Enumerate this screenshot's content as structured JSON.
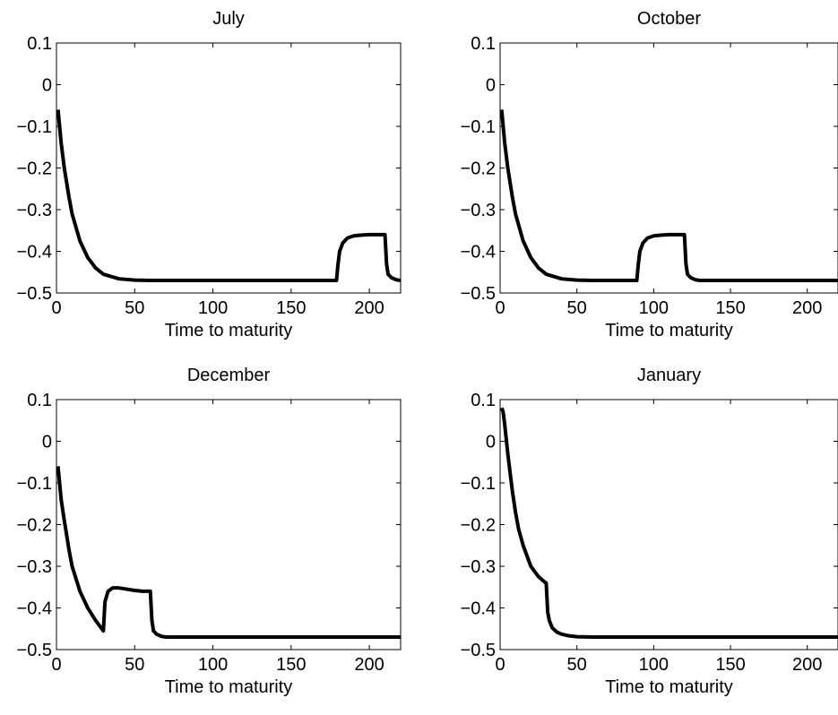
{
  "chart_data": [
    {
      "type": "line",
      "title": "July",
      "xlabel": "Time to maturity",
      "ylabel": "",
      "xlim": [
        0,
        220
      ],
      "ylim": [
        -0.5,
        0.1
      ],
      "xticks": [
        0,
        50,
        100,
        150,
        200
      ],
      "xtick_labels": [
        "0",
        "50",
        "100",
        "150",
        "200"
      ],
      "yticks": [
        0.1,
        0,
        -0.1,
        -0.2,
        -0.3,
        -0.4,
        -0.5
      ],
      "ytick_labels": [
        "0.1",
        "0",
        "−0.1",
        "−0.2",
        "−0.3",
        "−0.4",
        "−0.5"
      ],
      "grid": false,
      "series": [
        {
          "color": "#000000",
          "x": [
            1,
            3,
            5,
            8,
            10,
            15,
            20,
            25,
            30,
            40,
            50,
            60,
            80,
            100,
            120,
            150,
            179,
            180,
            181,
            183,
            186,
            190,
            195,
            200,
            205,
            210,
            211,
            212,
            214,
            217,
            220
          ],
          "y": [
            -0.06,
            -0.14,
            -0.2,
            -0.27,
            -0.31,
            -0.375,
            -0.415,
            -0.44,
            -0.455,
            -0.466,
            -0.469,
            -0.47,
            -0.47,
            -0.47,
            -0.47,
            -0.47,
            -0.47,
            -0.43,
            -0.4,
            -0.38,
            -0.368,
            -0.363,
            -0.361,
            -0.36,
            -0.36,
            -0.36,
            -0.43,
            -0.455,
            -0.463,
            -0.468,
            -0.47
          ]
        }
      ]
    },
    {
      "type": "line",
      "title": "October",
      "xlabel": "Time to maturity",
      "ylabel": "",
      "xlim": [
        0,
        220
      ],
      "ylim": [
        -0.5,
        0.1
      ],
      "xticks": [
        0,
        50,
        100,
        150,
        200
      ],
      "xtick_labels": [
        "0",
        "50",
        "100",
        "150",
        "200"
      ],
      "yticks": [
        0.1,
        0,
        -0.1,
        -0.2,
        -0.3,
        -0.4,
        -0.5
      ],
      "ytick_labels": [
        "0.1",
        "0",
        "−0.1",
        "−0.2",
        "−0.3",
        "−0.4",
        "−0.5"
      ],
      "grid": false,
      "series": [
        {
          "color": "#000000",
          "x": [
            1,
            3,
            5,
            8,
            10,
            15,
            20,
            25,
            30,
            40,
            50,
            60,
            70,
            80,
            89,
            90,
            91,
            93,
            96,
            100,
            105,
            110,
            115,
            120,
            121,
            122,
            124,
            127,
            130,
            140,
            160,
            180,
            200,
            220
          ],
          "y": [
            -0.06,
            -0.14,
            -0.2,
            -0.27,
            -0.31,
            -0.375,
            -0.415,
            -0.44,
            -0.455,
            -0.466,
            -0.469,
            -0.47,
            -0.47,
            -0.47,
            -0.47,
            -0.43,
            -0.4,
            -0.38,
            -0.368,
            -0.363,
            -0.361,
            -0.36,
            -0.36,
            -0.36,
            -0.43,
            -0.455,
            -0.463,
            -0.468,
            -0.47,
            -0.47,
            -0.47,
            -0.47,
            -0.47,
            -0.47
          ]
        }
      ]
    },
    {
      "type": "line",
      "title": "December",
      "xlabel": "Time to maturity",
      "ylabel": "",
      "xlim": [
        0,
        220
      ],
      "ylim": [
        -0.5,
        0.1
      ],
      "xticks": [
        0,
        50,
        100,
        150,
        200
      ],
      "xtick_labels": [
        "0",
        "50",
        "100",
        "150",
        "200"
      ],
      "yticks": [
        0.1,
        0,
        -0.1,
        -0.2,
        -0.3,
        -0.4,
        -0.5
      ],
      "ytick_labels": [
        "0.1",
        "0",
        "−0.1",
        "−0.2",
        "−0.3",
        "−0.4",
        "−0.5"
      ],
      "grid": false,
      "series": [
        {
          "color": "#000000",
          "x": [
            1,
            3,
            5,
            8,
            10,
            15,
            20,
            25,
            29,
            30,
            31,
            33,
            36,
            40,
            45,
            50,
            55,
            59,
            60,
            61,
            62,
            64,
            67,
            70,
            80,
            100,
            120,
            150,
            180,
            220
          ],
          "y": [
            -0.06,
            -0.14,
            -0.19,
            -0.26,
            -0.3,
            -0.36,
            -0.4,
            -0.43,
            -0.45,
            -0.455,
            -0.385,
            -0.36,
            -0.352,
            -0.352,
            -0.355,
            -0.358,
            -0.36,
            -0.36,
            -0.36,
            -0.43,
            -0.455,
            -0.463,
            -0.468,
            -0.47,
            -0.47,
            -0.47,
            -0.47,
            -0.47,
            -0.47,
            -0.47
          ]
        }
      ]
    },
    {
      "type": "line",
      "title": "January",
      "xlabel": "Time to maturity",
      "ylabel": "",
      "xlim": [
        0,
        220
      ],
      "ylim": [
        -0.5,
        0.1
      ],
      "xticks": [
        0,
        50,
        100,
        150,
        200
      ],
      "xtick_labels": [
        "0",
        "50",
        "100",
        "150",
        "200"
      ],
      "yticks": [
        0.1,
        0,
        -0.1,
        -0.2,
        -0.3,
        -0.4,
        -0.5
      ],
      "ytick_labels": [
        "0.1",
        "0",
        "−0.1",
        "−0.2",
        "−0.3",
        "−0.4",
        "−0.5"
      ],
      "grid": false,
      "series": [
        {
          "color": "#000000",
          "x": [
            1,
            2,
            3,
            5,
            8,
            10,
            12,
            15,
            20,
            25,
            29,
            30,
            31,
            32,
            34,
            37,
            40,
            45,
            50,
            60,
            70,
            80,
            100,
            120,
            150,
            180,
            220
          ],
          "y": [
            0.08,
            0.07,
            0.04,
            -0.03,
            -0.12,
            -0.17,
            -0.21,
            -0.25,
            -0.3,
            -0.325,
            -0.338,
            -0.34,
            -0.41,
            -0.43,
            -0.448,
            -0.458,
            -0.463,
            -0.467,
            -0.469,
            -0.47,
            -0.47,
            -0.47,
            -0.47,
            -0.47,
            -0.47,
            -0.47,
            -0.47
          ]
        }
      ]
    }
  ]
}
